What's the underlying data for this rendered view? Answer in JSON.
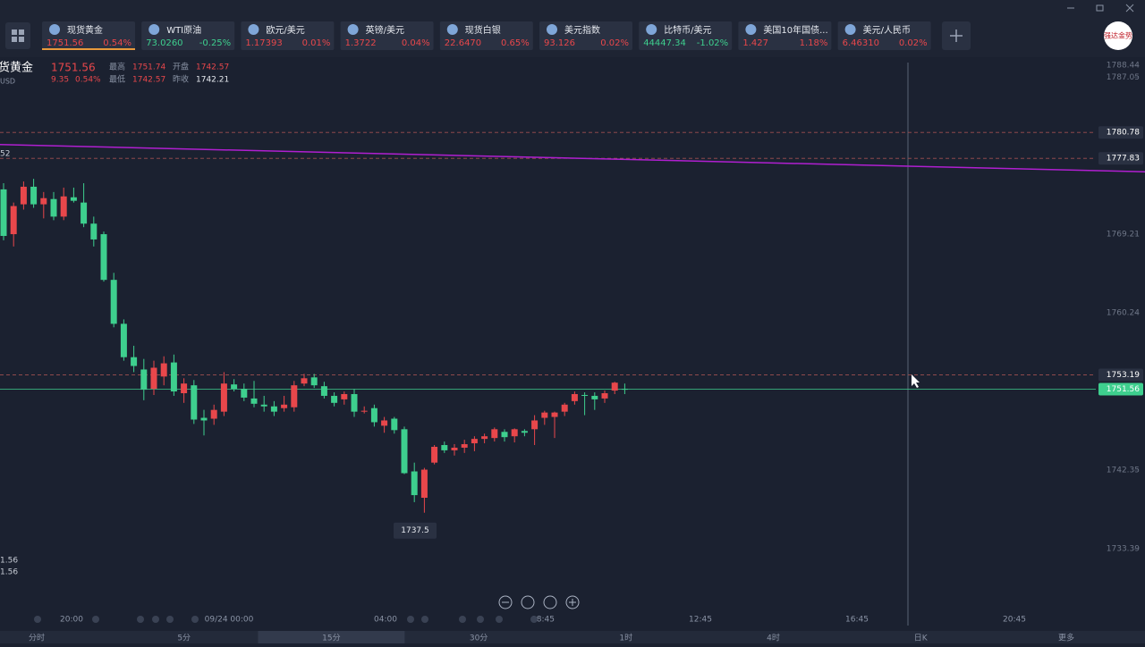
{
  "tickers": [
    {
      "name": "现货黄金",
      "price": "1751.56",
      "change": "0.54%",
      "color": "#e8474b",
      "selected": true
    },
    {
      "name": "WTI原油",
      "price": "73.0260",
      "change": "-0.25%",
      "color": "#3ecf8e"
    },
    {
      "name": "欧元/美元",
      "price": "1.17393",
      "change": "0.01%",
      "color": "#e8474b"
    },
    {
      "name": "英镑/美元",
      "price": "1.3722",
      "change": "0.04%",
      "color": "#e8474b"
    },
    {
      "name": "现货白银",
      "price": "22.6470",
      "change": "0.65%",
      "color": "#e8474b"
    },
    {
      "name": "美元指数",
      "price": "93.126",
      "change": "0.02%",
      "color": "#e8474b"
    },
    {
      "name": "比特币/美元",
      "price": "44447.34",
      "change": "-1.02%",
      "color": "#3ecf8e"
    },
    {
      "name": "美国10年国债...",
      "price": "1.427",
      "change": "1.18%",
      "color": "#e8474b"
    },
    {
      "name": "美元/人民币",
      "price": "6.46310",
      "change": "0.02%",
      "color": "#e8474b"
    }
  ],
  "logo": "强达金势",
  "quote": {
    "name": "货黄金",
    "currency": "USD",
    "price": "1751.56",
    "change": "9.35",
    "change_pct": "0.54%",
    "high_label": "最高",
    "high": "1751.74",
    "open_label": "开盘",
    "open": "1742.57",
    "low_label": "最低",
    "low": "1742.57",
    "prev_label": "昨收",
    "prev": "1742.21"
  },
  "left_labels": [
    "52",
    "1.56",
    "1.56"
  ],
  "chart_data": {
    "type": "candlestick",
    "up_color": "#e8474b",
    "down_color": "#3ecf8e",
    "ylim": [
      1726.69,
      1789.14
    ],
    "yticks": [
      1788.44,
      1787.05,
      1769.21,
      1760.24,
      1742.35,
      1733.39
    ],
    "x_labels": [
      "20:00",
      "09/24 00:00",
      "04:00",
      "08:45",
      "12:45",
      "16:45",
      "20:45"
    ],
    "ma": {
      "color": "#b01fd0",
      "values": [
        1779.4,
        1776.3
      ]
    },
    "levels": [
      {
        "value": 1780.78,
        "color": "#a05050"
      },
      {
        "value": 1777.83,
        "color": "#a05050"
      },
      {
        "value": 1753.19,
        "color": "#a05050"
      },
      {
        "value": 1751.56,
        "color": "#3ecf8e"
      }
    ],
    "low_label": 1737.5,
    "open": [
      1774.3,
      1769.2,
      1772.6,
      1774.6,
      1772.6,
      1773.2,
      1771.2,
      1773.4,
      1772.8,
      1770.4,
      1769.2,
      1764.0,
      1759.0,
      1755.2,
      1753.8,
      1751.6,
      1753.0,
      1754.6,
      1751.1,
      1752.0,
      1748.3,
      1748.2,
      1749.0,
      1752.1,
      1751.6,
      1750.5,
      1749.8,
      1749.6,
      1749.4,
      1749.5,
      1752.2,
      1752.9,
      1751.9,
      1750.8,
      1750.4,
      1751.0,
      1749.0,
      1749.4,
      1747.4,
      1748.2,
      1747.0,
      1742.2,
      1739.2,
      1743.2,
      1745.2,
      1744.6,
      1744.9,
      1745.4,
      1745.9,
      1746.0,
      1746.7,
      1746.2,
      1746.8,
      1747.0,
      1748.3,
      1748.4,
      1749.0,
      1750.2,
      1750.9,
      1750.8,
      1750.5,
      1751.4,
      1751.6
    ],
    "high": [
      1775.0,
      1772.8,
      1775.2,
      1775.5,
      1774.0,
      1774.0,
      1774.5,
      1774.5,
      1775.0,
      1771.2,
      1769.5,
      1764.8,
      1759.5,
      1756.5,
      1755.0,
      1754.8,
      1755.3,
      1755.5,
      1752.8,
      1752.6,
      1749.2,
      1749.8,
      1753.5,
      1752.7,
      1752.2,
      1752.5,
      1750.8,
      1750.2,
      1750.8,
      1752.5,
      1753.3,
      1753.3,
      1752.4,
      1751.2,
      1751.3,
      1751.6,
      1749.6,
      1749.8,
      1748.4,
      1748.4,
      1747.3,
      1743.2,
      1742.6,
      1745.2,
      1745.6,
      1745.3,
      1745.8,
      1746.2,
      1746.5,
      1747.2,
      1747.0,
      1747.1,
      1747.0,
      1748.6,
      1749.1,
      1749.0,
      1750.0,
      1751.3,
      1751.2,
      1751.2,
      1751.4,
      1752.4,
      1752.2
    ],
    "low": [
      1768.5,
      1767.8,
      1772.0,
      1772.2,
      1771.0,
      1770.8,
      1770.8,
      1772.8,
      1770.0,
      1767.8,
      1763.8,
      1758.6,
      1754.8,
      1753.5,
      1750.3,
      1750.9,
      1752.0,
      1750.8,
      1750.0,
      1747.6,
      1746.3,
      1747.5,
      1748.5,
      1751.3,
      1750.2,
      1749.5,
      1749.0,
      1748.5,
      1749.0,
      1749.0,
      1751.9,
      1751.7,
      1750.5,
      1749.6,
      1749.8,
      1748.4,
      1748.8,
      1747.3,
      1746.6,
      1746.5,
      1741.9,
      1738.7,
      1737.5,
      1743.0,
      1744.3,
      1744.0,
      1744.3,
      1744.5,
      1745.4,
      1745.6,
      1745.6,
      1745.5,
      1746.2,
      1745.2,
      1747.5,
      1746.0,
      1748.5,
      1749.8,
      1748.6,
      1749.2,
      1750.0,
      1751.0,
      1751.0
    ],
    "close": [
      1769.0,
      1772.4,
      1774.6,
      1772.6,
      1773.3,
      1771.2,
      1773.5,
      1773.0,
      1770.4,
      1768.6,
      1764.0,
      1759.0,
      1755.2,
      1754.2,
      1751.5,
      1754.0,
      1754.5,
      1751.3,
      1752.2,
      1748.1,
      1748.0,
      1749.2,
      1752.2,
      1751.6,
      1750.6,
      1749.9,
      1749.6,
      1749.0,
      1749.8,
      1752.0,
      1752.8,
      1752.0,
      1750.8,
      1750.0,
      1751.0,
      1749.0,
      1749.1,
      1747.8,
      1748.0,
      1746.9,
      1742.0,
      1739.5,
      1742.4,
      1745.0,
      1744.6,
      1744.9,
      1745.3,
      1745.9,
      1746.2,
      1747.0,
      1746.1,
      1747.0,
      1746.6,
      1748.0,
      1748.9,
      1748.9,
      1749.8,
      1751.0,
      1750.8,
      1750.4,
      1751.1,
      1752.3,
      1751.56
    ]
  },
  "timeframes": [
    "分时",
    "5分",
    "15分",
    "30分",
    "1时",
    "4时",
    "日K",
    "更多"
  ],
  "selected_timeframe": 2
}
